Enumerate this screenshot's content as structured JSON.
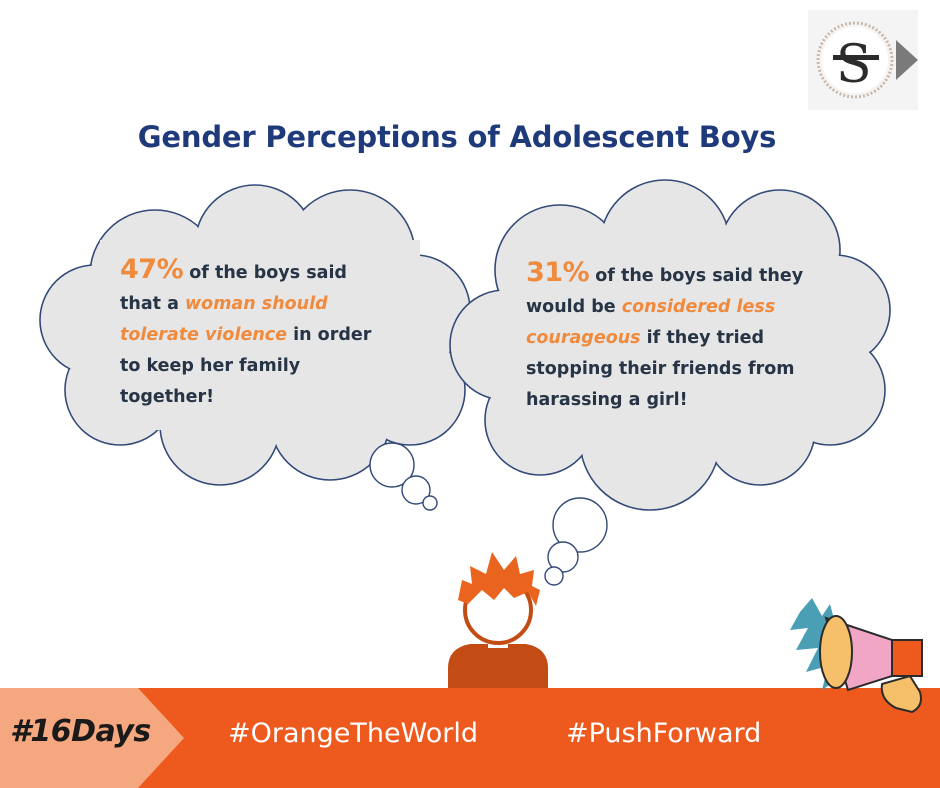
{
  "title": "Gender Perceptions of Adolescent Boys",
  "bubble_left": {
    "percent": "47%",
    "lead": " of the boys said that a ",
    "highlight": "woman should tolerate violence",
    "tail": " in order to keep her family together!"
  },
  "bubble_right": {
    "percent": "31%",
    "lead": " of the boys said they would be ",
    "highlight": "considered less courageous",
    "tail": " if they tried stopping their friends from harassing a girl!"
  },
  "footer": {
    "tag_16days": "#16Days",
    "tag_orange": "#OrangeTheWorld",
    "tag_push": "#PushForward"
  },
  "colors": {
    "title": "#1f3a7a",
    "highlight": "#f08a3c",
    "bubble_fill": "#e6e6e6",
    "bubble_stroke": "#334a78",
    "footer_orange": "#ee5a1e",
    "footer_light": "#f5a77f",
    "boy_hair": "#e8641f",
    "boy_shirt": "#c24c14"
  },
  "icons": {
    "logo": "monogram-logo",
    "boy": "boy-icon",
    "megaphone": "megaphone-icon"
  }
}
